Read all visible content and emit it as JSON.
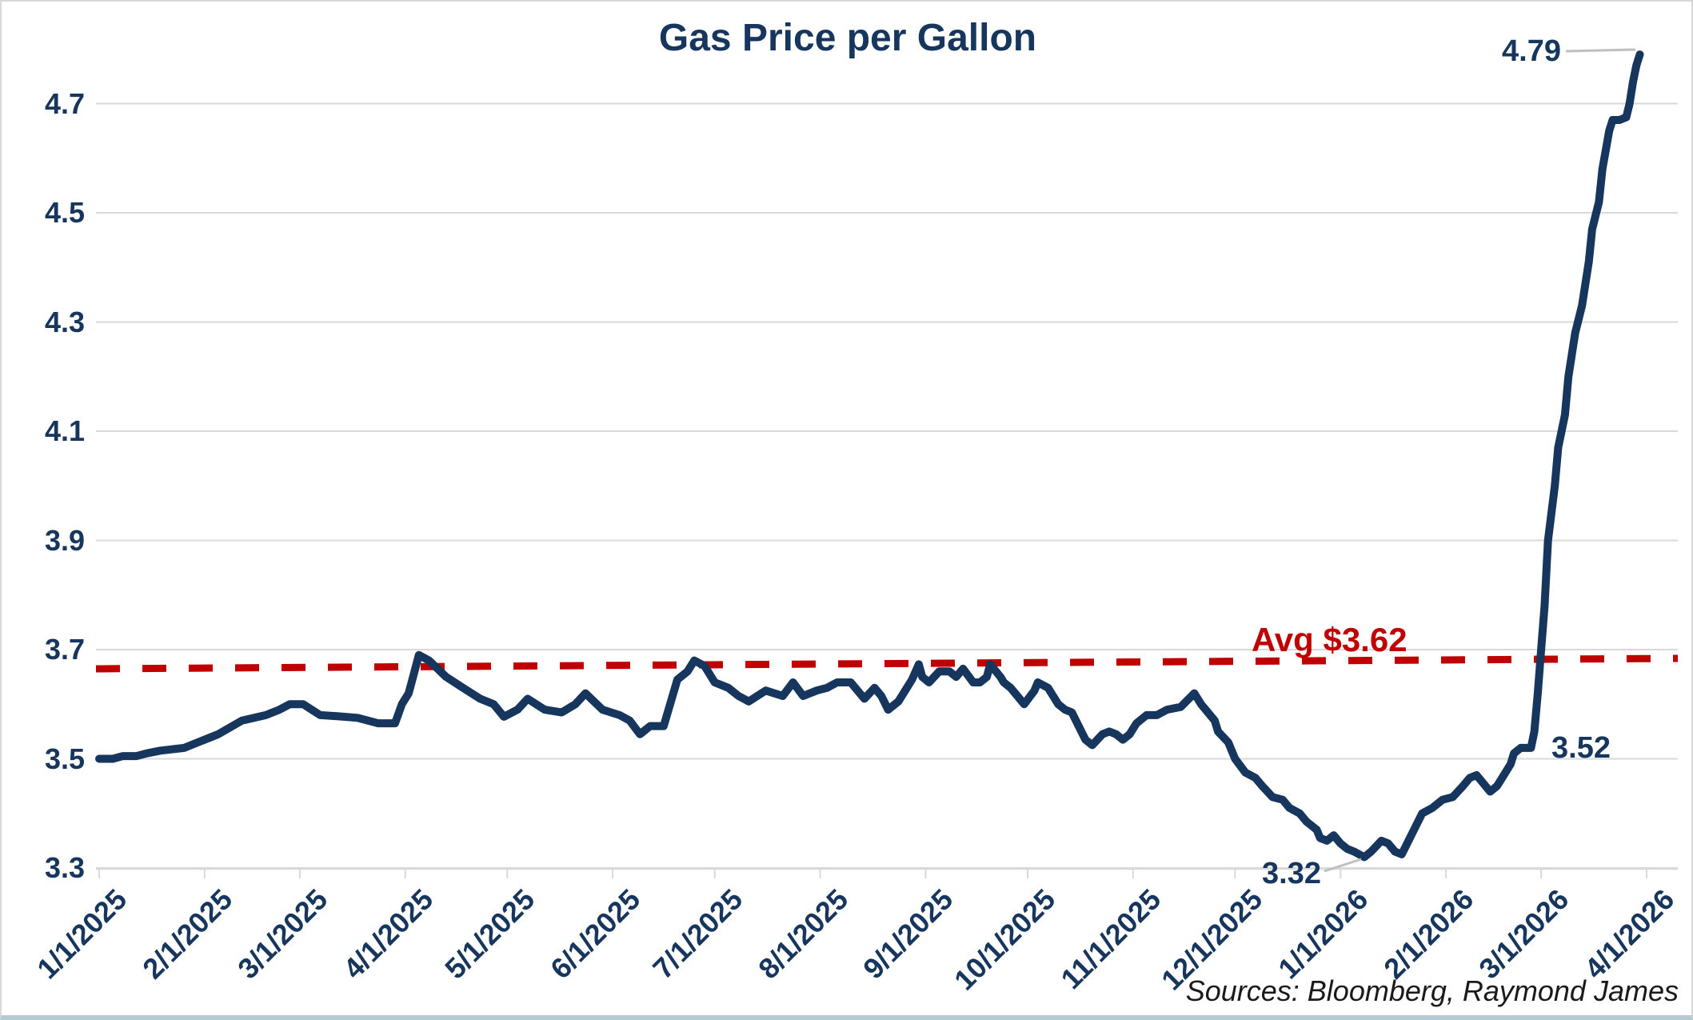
{
  "title": "Gas Price per Gallon",
  "source_note": "Sources: Bloomberg, Raymond James",
  "colors": {
    "line": "#17365D",
    "average_line": "#C00000",
    "grid": "#D9D9D9",
    "axis": "#D9D9D9",
    "leader": "#BFBFBF",
    "label_text": "#17365D",
    "source_text": "#1A1A1A",
    "background": "#FFFFFF"
  },
  "chart_data": {
    "type": "line",
    "title": "Gas Price per Gallon",
    "xlabel": "",
    "ylabel": "",
    "grid": true,
    "legend": false,
    "ylim": [
      3.3,
      4.8
    ],
    "y_ticks": [
      4.7,
      4.5,
      4.3,
      4.1,
      3.9,
      3.7,
      3.5,
      3.3
    ],
    "x_tick_labels": [
      "1/1/2025",
      "2/1/2025",
      "3/1/2025",
      "4/1/2025",
      "5/1/2025",
      "6/1/2025",
      "7/1/2025",
      "8/1/2025",
      "9/1/2025",
      "10/1/2025",
      "11/1/2025",
      "12/1/2025",
      "1/1/2026",
      "2/1/2026",
      "3/1/2026",
      "4/1/2026"
    ],
    "x_tick_days": [
      0,
      31,
      59,
      90,
      120,
      151,
      181,
      212,
      243,
      273,
      304,
      334,
      365,
      396,
      424,
      455
    ],
    "average_line": {
      "label": "Avg $3.62",
      "value": 3.62
    },
    "annotations": [
      {
        "id": "peak",
        "text": "4.79",
        "value": 4.79,
        "date": "3/30/2026"
      },
      {
        "id": "pre_spike",
        "text": "3.52",
        "value": 3.52,
        "date": "2/24/2026"
      },
      {
        "id": "min",
        "text": "3.32",
        "value": 3.32,
        "date": "1/7/2026"
      }
    ],
    "series": [
      {
        "name": "Gas Price per Gallon",
        "points": [
          [
            0,
            3.5
          ],
          [
            4,
            3.5
          ],
          [
            7,
            3.505
          ],
          [
            11,
            3.505
          ],
          [
            14,
            3.51
          ],
          [
            18,
            3.515
          ],
          [
            25,
            3.52
          ],
          [
            29,
            3.53
          ],
          [
            35,
            3.545
          ],
          [
            42,
            3.57
          ],
          [
            49,
            3.58
          ],
          [
            53,
            3.59
          ],
          [
            56,
            3.6
          ],
          [
            60,
            3.6
          ],
          [
            65,
            3.58
          ],
          [
            70,
            3.578
          ],
          [
            76,
            3.575
          ],
          [
            82,
            3.565
          ],
          [
            87,
            3.565
          ],
          [
            89,
            3.6
          ],
          [
            91,
            3.62
          ],
          [
            94,
            3.69
          ],
          [
            97,
            3.68
          ],
          [
            102,
            3.65
          ],
          [
            107,
            3.63
          ],
          [
            112,
            3.61
          ],
          [
            116,
            3.6
          ],
          [
            119,
            3.577
          ],
          [
            123,
            3.59
          ],
          [
            126,
            3.61
          ],
          [
            131,
            3.59
          ],
          [
            136,
            3.585
          ],
          [
            140,
            3.6
          ],
          [
            143,
            3.62
          ],
          [
            148,
            3.59
          ],
          [
            153,
            3.58
          ],
          [
            156,
            3.57
          ],
          [
            159,
            3.545
          ],
          [
            162,
            3.56
          ],
          [
            166,
            3.56
          ],
          [
            170,
            3.645
          ],
          [
            173,
            3.66
          ],
          [
            175,
            3.68
          ],
          [
            178,
            3.67
          ],
          [
            181,
            3.64
          ],
          [
            185,
            3.63
          ],
          [
            188,
            3.615
          ],
          [
            191,
            3.605
          ],
          [
            196,
            3.625
          ],
          [
            201,
            3.615
          ],
          [
            204,
            3.64
          ],
          [
            207,
            3.615
          ],
          [
            211,
            3.625
          ],
          [
            214,
            3.63
          ],
          [
            217,
            3.64
          ],
          [
            221,
            3.64
          ],
          [
            225,
            3.61
          ],
          [
            228,
            3.63
          ],
          [
            230,
            3.615
          ],
          [
            232,
            3.59
          ],
          [
            235,
            3.605
          ],
          [
            239,
            3.645
          ],
          [
            241,
            3.673
          ],
          [
            242,
            3.65
          ],
          [
            244,
            3.64
          ],
          [
            247,
            3.66
          ],
          [
            250,
            3.66
          ],
          [
            252,
            3.65
          ],
          [
            254,
            3.665
          ],
          [
            257,
            3.64
          ],
          [
            259,
            3.64
          ],
          [
            261,
            3.65
          ],
          [
            262,
            3.673
          ],
          [
            265,
            3.65
          ],
          [
            266,
            3.64
          ],
          [
            268,
            3.63
          ],
          [
            270,
            3.615
          ],
          [
            272,
            3.6
          ],
          [
            275,
            3.625
          ],
          [
            276,
            3.64
          ],
          [
            279,
            3.63
          ],
          [
            281,
            3.61
          ],
          [
            282,
            3.6
          ],
          [
            284,
            3.59
          ],
          [
            286,
            3.585
          ],
          [
            288,
            3.56
          ],
          [
            290,
            3.535
          ],
          [
            292,
            3.525
          ],
          [
            295,
            3.545
          ],
          [
            297,
            3.55
          ],
          [
            299,
            3.545
          ],
          [
            301,
            3.535
          ],
          [
            303,
            3.545
          ],
          [
            305,
            3.565
          ],
          [
            308,
            3.58
          ],
          [
            311,
            3.58
          ],
          [
            314,
            3.59
          ],
          [
            318,
            3.595
          ],
          [
            322,
            3.62
          ],
          [
            324,
            3.6
          ],
          [
            326,
            3.585
          ],
          [
            328,
            3.57
          ],
          [
            329,
            3.55
          ],
          [
            332,
            3.53
          ],
          [
            334,
            3.5
          ],
          [
            337,
            3.475
          ],
          [
            340,
            3.465
          ],
          [
            342,
            3.45
          ],
          [
            345,
            3.43
          ],
          [
            348,
            3.425
          ],
          [
            350,
            3.41
          ],
          [
            353,
            3.4
          ],
          [
            355,
            3.385
          ],
          [
            358,
            3.37
          ],
          [
            359,
            3.355
          ],
          [
            361,
            3.35
          ],
          [
            363,
            3.36
          ],
          [
            365,
            3.345
          ],
          [
            367,
            3.335
          ],
          [
            369,
            3.33
          ],
          [
            372,
            3.32
          ],
          [
            374,
            3.33
          ],
          [
            377,
            3.35
          ],
          [
            379,
            3.345
          ],
          [
            381,
            3.33
          ],
          [
            383,
            3.325
          ],
          [
            385,
            3.35
          ],
          [
            387,
            3.375
          ],
          [
            389,
            3.4
          ],
          [
            392,
            3.41
          ],
          [
            395,
            3.425
          ],
          [
            398,
            3.43
          ],
          [
            401,
            3.45
          ],
          [
            403,
            3.465
          ],
          [
            405,
            3.47
          ],
          [
            407,
            3.455
          ],
          [
            409,
            3.44
          ],
          [
            411,
            3.45
          ],
          [
            413,
            3.47
          ],
          [
            415,
            3.49
          ],
          [
            416,
            3.51
          ],
          [
            418,
            3.52
          ],
          [
            421,
            3.52
          ],
          [
            422,
            3.55
          ],
          [
            423,
            3.62
          ],
          [
            424,
            3.7
          ],
          [
            425,
            3.78
          ],
          [
            426,
            3.9
          ],
          [
            428,
            4.0
          ],
          [
            429,
            4.07
          ],
          [
            431,
            4.13
          ],
          [
            432,
            4.2
          ],
          [
            434,
            4.28
          ],
          [
            436,
            4.33
          ],
          [
            438,
            4.41
          ],
          [
            439,
            4.47
          ],
          [
            441,
            4.52
          ],
          [
            442,
            4.58
          ],
          [
            444,
            4.65
          ],
          [
            445,
            4.67
          ],
          [
            447,
            4.67
          ],
          [
            449,
            4.675
          ],
          [
            450,
            4.7
          ],
          [
            451,
            4.74
          ],
          [
            452,
            4.77
          ],
          [
            453,
            4.79
          ]
        ]
      }
    ]
  }
}
